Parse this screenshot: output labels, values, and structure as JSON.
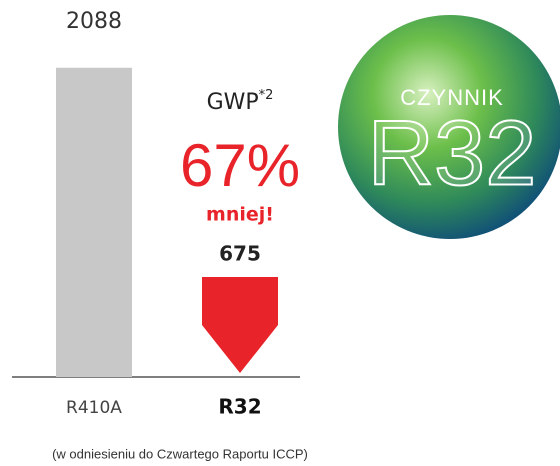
{
  "chart_data": {
    "type": "bar",
    "categories": [
      "R410A",
      "R32"
    ],
    "values": [
      2088,
      675
    ],
    "colors": [
      "#c8c8c8",
      "#e8232a"
    ],
    "ylim": [
      0,
      2100
    ],
    "annotations": {
      "metric": "GWP",
      "metric_note": "*2",
      "reduction": "67%",
      "reduction_text": "mniej!"
    },
    "footnote": "(w odniesieniu do Czwartego Raportu ICCP)",
    "badge": {
      "line1": "CZYNNIK",
      "line2": "R32"
    }
  }
}
